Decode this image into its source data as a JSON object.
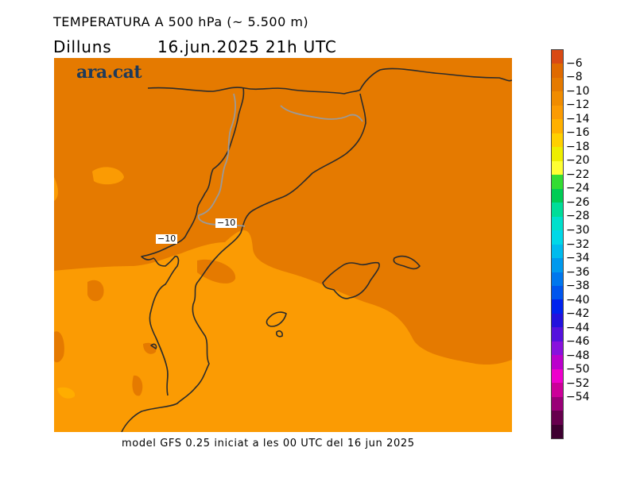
{
  "header": {
    "title": "TEMPERATURA A 500 hPa (~ 5.500 m)",
    "day": "Dilluns",
    "datetime": "16.jun.2025  21h  UTC"
  },
  "logo": {
    "text": "ara.cat"
  },
  "map": {
    "field_colors": {
      "minus_8_to_minus_10": "#e57a00",
      "minus_10_to_minus_12": "#fb9b03",
      "minus_12_to_minus_14": "#ffad00"
    },
    "coastline_color": "#2b2b2b",
    "border_color": "#9a9a9a",
    "contour_labels": [
      "−10",
      "−10"
    ]
  },
  "colorbar": {
    "levels": [
      "−6",
      "−8",
      "−10",
      "−12",
      "−14",
      "−16",
      "−18",
      "−20",
      "−22",
      "−24",
      "−26",
      "−28",
      "−30",
      "−32",
      "−34",
      "−36",
      "−38",
      "−40",
      "−42",
      "−44",
      "−46",
      "−48",
      "−50",
      "−52",
      "−54"
    ],
    "colors": [
      "#d94a14",
      "#e06a00",
      "#e57a00",
      "#f08c00",
      "#fb9b03",
      "#ffb000",
      "#ffd000",
      "#eeee00",
      "#ffff33",
      "#33dd33",
      "#00cc55",
      "#00dd99",
      "#00e0cc",
      "#00d8e8",
      "#00bbee",
      "#0099ee",
      "#0077ee",
      "#0055ee",
      "#0022ee",
      "#2211dd",
      "#5511dd",
      "#8811dd",
      "#bb00cc",
      "#ee00cc",
      "#cc0099",
      "#990077",
      "#66004d",
      "#3d0030"
    ]
  },
  "footer": {
    "text": "model GFS 0.25 iniciat a les 00 UTC del 16 jun 2025"
  }
}
